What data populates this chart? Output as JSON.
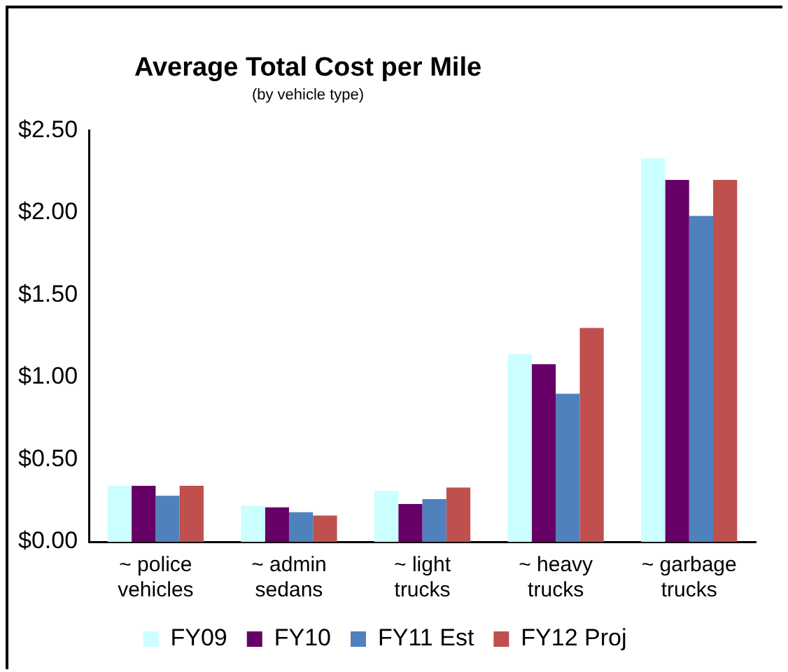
{
  "chart_data": {
    "type": "bar",
    "title": "Average Total Cost per Mile",
    "subtitle": "(by vehicle type)",
    "categories": [
      "~ police vehicles",
      "~ admin sedans",
      "~ light trucks",
      "~ heavy trucks",
      "~ garbage trucks"
    ],
    "series": [
      {
        "name": "FY09",
        "color": "#ccffff",
        "values": [
          0.34,
          0.22,
          0.31,
          1.14,
          2.33
        ]
      },
      {
        "name": "FY10",
        "color": "#660066",
        "values": [
          0.34,
          0.21,
          0.23,
          1.08,
          2.2
        ]
      },
      {
        "name": "FY11 Est",
        "color": "#4f81bd",
        "values": [
          0.28,
          0.18,
          0.26,
          0.9,
          1.98
        ]
      },
      {
        "name": "FY12 Proj",
        "color": "#c0504d",
        "values": [
          0.34,
          0.16,
          0.33,
          1.3,
          2.2
        ]
      }
    ],
    "ylim": [
      0,
      2.5
    ],
    "yticks": [
      {
        "value": 0,
        "label": "$0.00"
      },
      {
        "value": 0.5,
        "label": "$0.50"
      },
      {
        "value": 1,
        "label": "$1.00"
      },
      {
        "value": 1.5,
        "label": "$1.50"
      },
      {
        "value": 2,
        "label": "$2.00"
      },
      {
        "value": 2.5,
        "label": "$2.50"
      }
    ],
    "grid": false,
    "legend": "bottom"
  }
}
